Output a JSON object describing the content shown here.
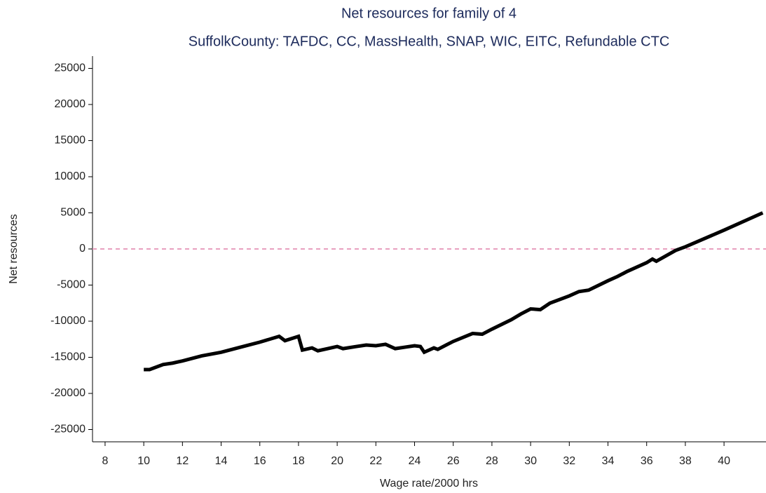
{
  "chart_data": {
    "type": "line",
    "title": "Net resources for family of 4",
    "subtitle": "SuffolkCounty: TAFDC, CC, MassHealth, SNAP, WIC, EITC, Refundable CTC",
    "x_label": "Wage rate/2000 hrs",
    "y_label": "Net resources",
    "x": [
      10,
      10.3,
      11,
      11.5,
      12,
      13,
      14,
      15,
      16,
      17,
      17.3,
      18,
      18.2,
      18.7,
      19,
      19.5,
      20,
      20.3,
      21,
      21.5,
      22,
      22.5,
      23,
      23.5,
      24,
      24.3,
      24.5,
      25,
      25.2,
      26,
      27,
      27.5,
      28,
      29,
      29.5,
      30,
      30.5,
      31,
      32,
      32.5,
      33,
      34,
      34.5,
      35,
      36,
      36.3,
      36.5,
      37.5,
      38,
      40,
      42
    ],
    "series": [
      {
        "name": "Net resources",
        "color": "#000000",
        "values": [
          -16700,
          -16700,
          -16000,
          -15800,
          -15500,
          -14800,
          -14300,
          -13600,
          -12900,
          -12100,
          -12700,
          -12100,
          -14000,
          -13700,
          -14100,
          -13800,
          -13500,
          -13800,
          -13500,
          -13300,
          -13400,
          -13200,
          -13800,
          -13600,
          -13400,
          -13500,
          -14300,
          -13700,
          -13900,
          -12800,
          -11700,
          -11800,
          -11100,
          -9800,
          -9000,
          -8300,
          -8400,
          -7500,
          -6500,
          -5900,
          -5700,
          -4400,
          -3800,
          -3100,
          -1900,
          -1400,
          -1700,
          -200,
          300,
          2600,
          5000
        ]
      }
    ],
    "reference_line": {
      "value": 0,
      "color": "#e8a0bf"
    },
    "xlim": [
      7.35,
      42.17
    ],
    "ylim": [
      -26700,
      26700
    ],
    "xticks": [
      8,
      10,
      12,
      14,
      16,
      18,
      20,
      22,
      24,
      26,
      28,
      30,
      32,
      34,
      36,
      38,
      40
    ],
    "yticks": [
      -25000,
      -20000,
      -15000,
      -10000,
      -5000,
      0,
      5000,
      10000,
      15000,
      20000,
      25000
    ],
    "grid": false
  }
}
